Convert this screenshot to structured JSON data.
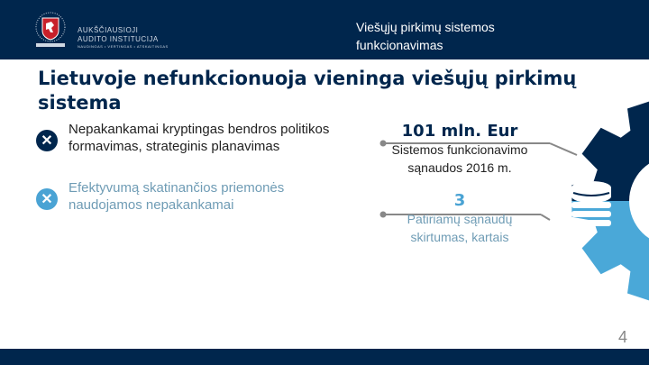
{
  "header": {
    "logo_text_line1": "AUKŠČIAUSIOJI",
    "logo_text_line2": "AUDITO INSTITUCIJA",
    "logo_tagline": "NAUDINGAS • VERTINGAS • ATSKAITINGAS",
    "title_line1": "Viešųjų pirkimų sistemos",
    "title_line2": "funkcionavimas"
  },
  "slide_title": "Lietuvoje nefunkcionuoja vieninga viešųjų pirkimų sistema",
  "items": [
    {
      "icon": "x-circle-icon",
      "text": "Nepakankamai kryptingas bendros politikos formavimas, strateginis planavimas",
      "color": "#00264d"
    },
    {
      "icon": "x-circle-icon",
      "text": "Efektyvumą skatinančios priemonės naudojamos nepakankamai",
      "color": "#4aa3d4"
    }
  ],
  "stats": [
    {
      "value": "101 mln. Eur",
      "label_line1": "Sistemos funkcionavimo",
      "label_line2": "sąnaudos 2016 m.",
      "color": "#00264d"
    },
    {
      "value": "3",
      "label_line1": "Patiriamų sąnaudų",
      "label_line2": "skirtumas, kartais",
      "color": "#4aa3d4"
    }
  ],
  "page_number": "4",
  "colors": {
    "navy": "#00264d",
    "light_blue": "#4aa8d8",
    "gray_text": "#6f9cb5"
  }
}
